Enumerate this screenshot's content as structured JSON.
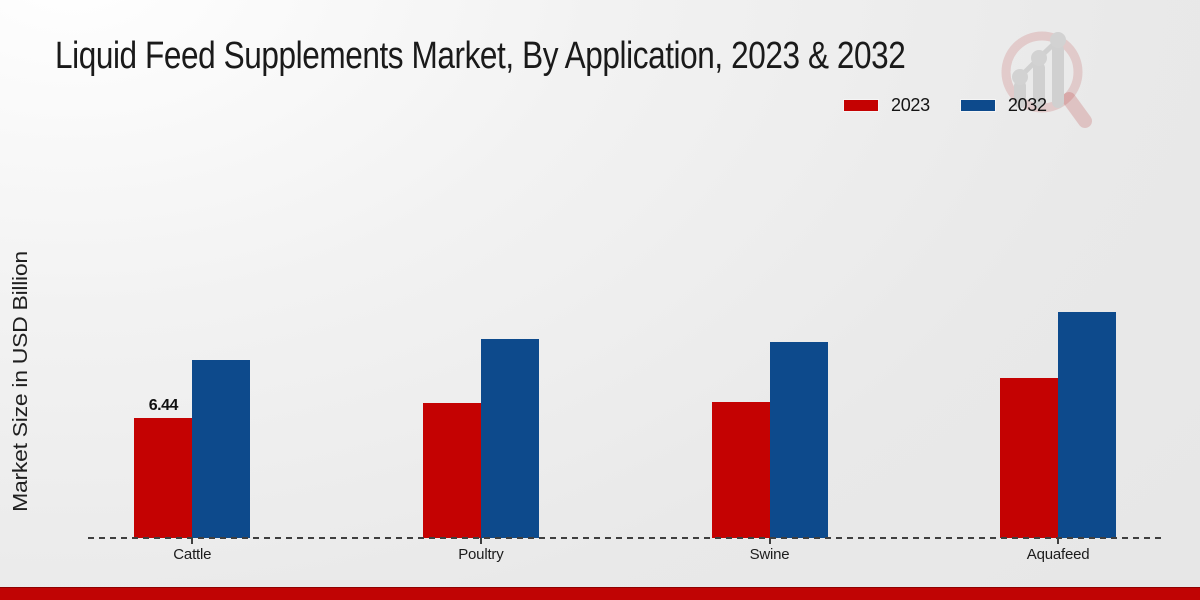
{
  "title": "Liquid Feed Supplements Market, By Application, 2023 & 2032",
  "y_axis_label": "Market Size in USD Billion",
  "legend": {
    "items": [
      {
        "label": "2023",
        "color": "#c40202"
      },
      {
        "label": "2032",
        "color": "#0d4a8c"
      }
    ],
    "position": "top-right"
  },
  "colors": {
    "series_2023": "#c40202",
    "series_2032": "#0d4a8c",
    "footer_bar": "#c00404",
    "baseline": "#3f3f3f"
  },
  "watermark_icon": "magnifier-bar-chart-logo",
  "chart_data": {
    "type": "bar",
    "title": "Liquid Feed Supplements Market, By Application, 2023 & 2032",
    "xlabel": "",
    "ylabel": "Market Size in USD Billion",
    "categories": [
      "Cattle",
      "Poultry",
      "Swine",
      "Aquafeed"
    ],
    "series": [
      {
        "name": "2023",
        "color": "#c40202",
        "values": [
          6.44,
          7.25,
          7.3,
          8.59
        ]
      },
      {
        "name": "2032",
        "color": "#0d4a8c",
        "values": [
          9.55,
          10.68,
          10.52,
          12.13
        ]
      }
    ],
    "data_labels": [
      {
        "category_index": 0,
        "series_index": 0,
        "text": "6.44"
      }
    ],
    "ylim": [
      0,
      13
    ],
    "grid": false,
    "baseline_style": "dashed",
    "legend_position": "top-right"
  }
}
